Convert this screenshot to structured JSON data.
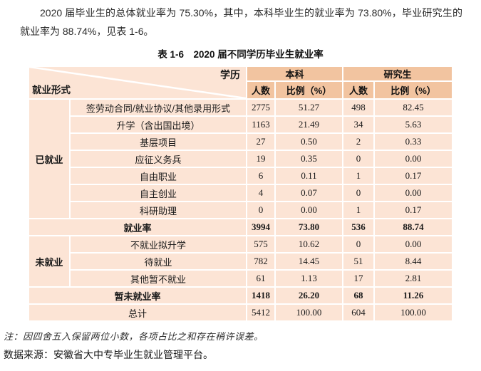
{
  "colors": {
    "header_bg": "#f2c4a0",
    "row_bg": "#fce4d5",
    "border": "#ffffff"
  },
  "intro": {
    "paragraph": "2020 届毕业生的总体就业率为 75.30%，其中，本科毕业生的就业率为 73.80%，毕业研究生的就业率为 88.74%，见表 1-6。"
  },
  "table": {
    "title": "表 1-6　2020 届不同学历毕业生就业率",
    "corner": {
      "top": "学历",
      "bottom": "就业形式"
    },
    "col_groups": [
      {
        "label": "本科"
      },
      {
        "label": "研究生"
      }
    ],
    "sub_headers": [
      "人数",
      "比例（%）",
      "人数",
      "比例（%）"
    ],
    "rows": [
      {
        "kind": "data",
        "group": "已就业",
        "group_span": 7,
        "label": "签劳动合同/就业协议/其他录用形式",
        "values": [
          "2775",
          "51.27",
          "498",
          "82.45"
        ],
        "bold": false
      },
      {
        "kind": "data",
        "label": "升学（含出国出境）",
        "values": [
          "1163",
          "21.49",
          "34",
          "5.63"
        ],
        "bold": false
      },
      {
        "kind": "data",
        "label": "基层项目",
        "values": [
          "27",
          "0.50",
          "2",
          "0.33"
        ],
        "bold": false
      },
      {
        "kind": "data",
        "label": "应征义务兵",
        "values": [
          "19",
          "0.35",
          "0",
          "0.00"
        ],
        "bold": false
      },
      {
        "kind": "data",
        "label": "自由职业",
        "values": [
          "6",
          "0.11",
          "1",
          "0.17"
        ],
        "bold": false
      },
      {
        "kind": "data",
        "label": "自主创业",
        "values": [
          "4",
          "0.07",
          "0",
          "0.00"
        ],
        "bold": false
      },
      {
        "kind": "data",
        "label": "科研助理",
        "values": [
          "0",
          "0.00",
          "1",
          "0.17"
        ],
        "bold": false
      },
      {
        "kind": "summary",
        "label": "就业率",
        "values": [
          "3994",
          "73.80",
          "536",
          "88.74"
        ],
        "bold": true
      },
      {
        "kind": "data",
        "group": "未就业",
        "group_span": 3,
        "label": "不就业拟升学",
        "values": [
          "575",
          "10.62",
          "0",
          "0.00"
        ],
        "bold": false
      },
      {
        "kind": "data",
        "label": "待就业",
        "values": [
          "782",
          "14.45",
          "51",
          "8.44"
        ],
        "bold": false
      },
      {
        "kind": "data",
        "label": "其他暂不就业",
        "values": [
          "61",
          "1.13",
          "17",
          "2.81"
        ],
        "bold": false
      },
      {
        "kind": "summary",
        "label": "暂未就业率",
        "values": [
          "1418",
          "26.20",
          "68",
          "11.26"
        ],
        "bold": true
      },
      {
        "kind": "summary",
        "label": "总计",
        "values": [
          "5412",
          "100.00",
          "604",
          "100.00"
        ],
        "bold": false
      }
    ]
  },
  "footer": {
    "note": "注：因四舍五入保留两位小数，各项占比之和存在稍许误差。",
    "source": "数据来源：安徽省大中专毕业生就业管理平台。"
  }
}
